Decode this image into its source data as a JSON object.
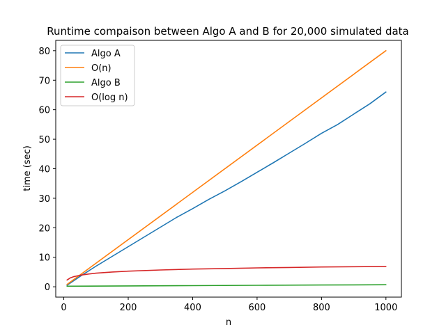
{
  "chart_data": {
    "type": "line",
    "title": "Runtime compaison between Algo A and B for 20,000 simulated data",
    "xlabel": "n",
    "ylabel": "time (sec)",
    "xlim": [
      -25,
      1048
    ],
    "ylim": [
      -3.5,
      83.5
    ],
    "xticks": [
      0,
      200,
      400,
      600,
      800,
      1000
    ],
    "yticks": [
      0,
      10,
      20,
      30,
      40,
      50,
      60,
      70,
      80
    ],
    "grid": false,
    "legend_position": "top-left",
    "series": [
      {
        "name": "Algo A",
        "color": "#1f77b4",
        "x": [
          10,
          50,
          100,
          150,
          200,
          250,
          300,
          350,
          400,
          450,
          500,
          550,
          600,
          650,
          700,
          750,
          800,
          850,
          900,
          950,
          1000
        ],
        "y": [
          0.5,
          3.5,
          7.0,
          10.3,
          13.6,
          16.9,
          20.2,
          23.5,
          26.5,
          29.6,
          32.5,
          35.6,
          38.8,
          42.0,
          45.3,
          48.6,
          52.0,
          55.0,
          58.5,
          62.0,
          66.0
        ]
      },
      {
        "name": "O(n)",
        "color": "#ff7f0e",
        "x": [
          10,
          1000
        ],
        "y": [
          0.8,
          80.0
        ]
      },
      {
        "name": "Algo B",
        "color": "#2ca02c",
        "x": [
          10,
          200,
          400,
          600,
          800,
          1000
        ],
        "y": [
          0.2,
          0.3,
          0.4,
          0.5,
          0.6,
          0.7
        ]
      },
      {
        "name": "O(log n)",
        "color": "#d62728",
        "x": [
          10,
          20,
          30,
          50,
          75,
          100,
          150,
          200,
          300,
          400,
          500,
          600,
          700,
          800,
          900,
          1000
        ],
        "y": [
          2.3,
          3.0,
          3.4,
          3.9,
          4.3,
          4.6,
          5.0,
          5.3,
          5.7,
          6.0,
          6.2,
          6.4,
          6.55,
          6.7,
          6.8,
          6.9
        ]
      }
    ]
  }
}
